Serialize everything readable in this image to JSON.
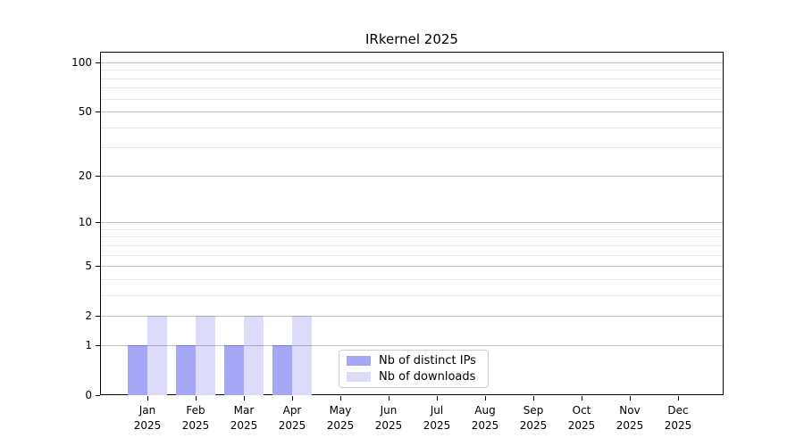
{
  "chart_data": {
    "type": "bar",
    "title": "IRkernel 2025",
    "categories": [
      "Jan",
      "Feb",
      "Mar",
      "Apr",
      "May",
      "Jun",
      "Jul",
      "Aug",
      "Sep",
      "Oct",
      "Nov",
      "Dec"
    ],
    "year_label": "2025",
    "series": [
      {
        "name": "Nb of distinct IPs",
        "color": "#a6a6f6",
        "values": [
          1,
          1,
          1,
          1,
          0,
          0,
          0,
          0,
          0,
          0,
          0,
          0
        ]
      },
      {
        "name": "Nb of downloads",
        "color": "#dcdcfa",
        "values": [
          2,
          2,
          2,
          2,
          0,
          0,
          0,
          0,
          0,
          0,
          0,
          0
        ]
      }
    ],
    "xlabel": "",
    "ylabel": "",
    "yscale": "log10(1+y)",
    "ylim": [
      0,
      117
    ],
    "yticks_major": [
      0,
      1,
      2,
      5,
      10,
      20,
      50,
      100
    ],
    "yticks_minor": [
      3,
      4,
      6,
      7,
      8,
      9,
      30,
      40,
      60,
      70,
      80,
      90
    ],
    "grid": "horizontal, majors and minors, drawn above bars",
    "legend_position": "lower center",
    "colors": {
      "distinct_ips_bar": "#a6a6f6",
      "downloads_bar": "#dcdcfa",
      "axis_spine": "#000000",
      "grid_major": "#c9c9c9",
      "grid_minor": "#ebebeb",
      "legend_border": "#cccccc",
      "text": "#000000",
      "background": "#ffffff"
    }
  }
}
